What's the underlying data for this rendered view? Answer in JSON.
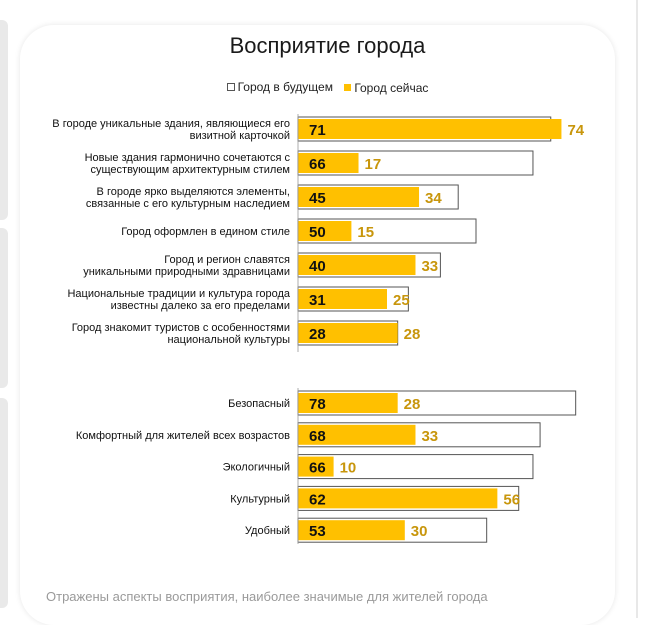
{
  "title": "Восприятие города",
  "legend": {
    "future": "Город в будущем",
    "now": "Город сейчас"
  },
  "colors": {
    "now": "#ffc000",
    "now_label": "#c8960c",
    "future_border": "#555555",
    "text": "#111111"
  },
  "footnote": "Отражены аспекты восприятия, наиболее значимые для жителей города",
  "chart_data": {
    "type": "bar",
    "orientation": "horizontal",
    "title": "Восприятие города",
    "groups": [
      {
        "categories": [
          [
            "В городе уникальные здания, являющиеся его",
            "визитной карточкой"
          ],
          [
            "Новые здания гармонично сочетаются с",
            "существующим архитектурным стилем"
          ],
          [
            "В городе ярко выделяются элементы,",
            "связанные с его культурным наследием"
          ],
          [
            "Город оформлен в едином стиле"
          ],
          [
            "Город и регион славятся",
            "уникальными природными здравницами"
          ],
          [
            "Национальные традиции и культура города",
            "известны далеко за его пределами"
          ],
          [
            "Город знакомит туристов с особенностями",
            "национальной культуры"
          ]
        ],
        "future": [
          71,
          66,
          45,
          50,
          40,
          31,
          28
        ],
        "now": [
          74,
          17,
          34,
          15,
          33,
          25,
          28
        ]
      },
      {
        "categories": [
          [
            "Безопасный"
          ],
          [
            "Комфортный для жителей всех возрастов"
          ],
          [
            "Экологичный"
          ],
          [
            "Культурный"
          ],
          [
            "Удобный"
          ]
        ],
        "future": [
          78,
          68,
          66,
          62,
          53
        ],
        "now": [
          28,
          33,
          10,
          56,
          30
        ]
      }
    ],
    "series": [
      {
        "name": "Город в будущем",
        "key": "future"
      },
      {
        "name": "Город сейчас",
        "key": "now"
      }
    ],
    "xlim": [
      0,
      90
    ]
  }
}
